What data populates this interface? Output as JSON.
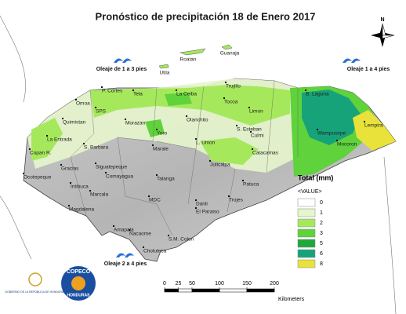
{
  "title": "Pronóstico de precipitación 18 de Enero 2017",
  "compass": "N",
  "waves": [
    "Oleaje de 1 a 3 pies",
    "Oleaje 1 a 4 pies",
    "Oleaje 2 a 4 pies"
  ],
  "islands": [
    "Roatan",
    "Guanaja",
    "Utila"
  ],
  "cities": [
    "P. Cortes",
    "Tela",
    "La Ceiba",
    "Trujillo",
    "Limon",
    "B. Laguna",
    "Omoa",
    "SPS",
    "Quimistan",
    "Morazan",
    "Olanchito",
    "Tocoa",
    "S. Esteban",
    "Culmi",
    "Wampusirpe",
    "Lempira",
    "Mocoron",
    "La Entrada",
    "S. Barbara",
    "Copan R.",
    "Yoro",
    "Marale",
    "L. Union",
    "Catacamas",
    "Juticalpa",
    "Gracias",
    "Siguatepeque",
    "Comayagua",
    "Ocotepeque",
    "Intibuca",
    "Marcala",
    "Talanga",
    "Patuca",
    "MDC",
    "Danli",
    "Trojes",
    "El Paraiso",
    "Magdalena",
    "Amapala",
    "Nacaome",
    "S.M. Colon",
    "Choluteca"
  ],
  "legend": {
    "title": "Total (mm)",
    "subtitle": "<VALUE>",
    "classes": [
      {
        "label": 0,
        "color": "#ffffff"
      },
      {
        "label": 1,
        "color": "#e6f5cc"
      },
      {
        "label": 2,
        "color": "#a6e85c"
      },
      {
        "label": 3,
        "color": "#5fd23c"
      },
      {
        "label": 5,
        "color": "#1fa83a"
      },
      {
        "label": 6,
        "color": "#17a37a"
      },
      {
        "label": 8,
        "color": "#e8e23a"
      }
    ]
  },
  "scale": {
    "ticks": [
      0,
      25,
      50,
      100,
      150,
      200
    ],
    "unit": "Kilometers"
  },
  "logos": {
    "copeco": "COPECO",
    "country": "HONDURAS",
    "government": "GOBIERNO DE LA REPÚBLICA DE HONDURAS"
  }
}
